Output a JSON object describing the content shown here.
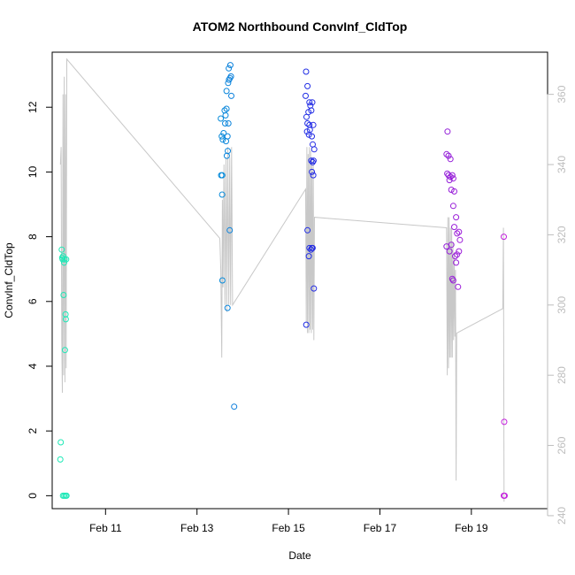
{
  "chart_data": {
    "type": "scatter",
    "title": "ATOM2 Northbound ConvInf_CldTop",
    "xlabel": "Date",
    "ylabel": "ConvInf_CldTop",
    "x_axis": {
      "unit": "date",
      "range": [
        "2016-02-09T20:00",
        "2016-02-20T16:00"
      ],
      "ticks": [
        {
          "label": "Feb 11",
          "value": "2016-02-11"
        },
        {
          "label": "Feb 13",
          "value": "2016-02-13"
        },
        {
          "label": "Feb 15",
          "value": "2016-02-15"
        },
        {
          "label": "Feb 17",
          "value": "2016-02-17"
        },
        {
          "label": "Feb 19",
          "value": "2016-02-19"
        }
      ]
    },
    "y_axis_left": {
      "range": [
        -0.4,
        13.7
      ],
      "ticks": [
        0,
        2,
        4,
        6,
        8,
        10,
        12
      ]
    },
    "y_axis_right": {
      "range": [
        242,
        372
      ],
      "ticks": [
        240,
        260,
        280,
        300,
        320,
        340,
        360
      ],
      "color": "#bdbdbd"
    },
    "grid": false,
    "legend": "none",
    "series": [
      {
        "role": "points",
        "axis": "left",
        "color_scale": [
          "#1de9b6",
          "#00bcd4",
          "#1a2ee6",
          "#7b1fd6",
          "#e020e0"
        ],
        "points": [
          {
            "x": "2016-02-10T01:00",
            "y": 7.6
          },
          {
            "x": "2016-02-10T01:15",
            "y": 7.35
          },
          {
            "x": "2016-02-10T01:30",
            "y": 7.3
          },
          {
            "x": "2016-02-10T01:45",
            "y": 7.4
          },
          {
            "x": "2016-02-10T02:00",
            "y": 6.2
          },
          {
            "x": "2016-02-10T02:15",
            "y": 7.2
          },
          {
            "x": "2016-02-10T02:30",
            "y": 7.3
          },
          {
            "x": "2016-02-10T02:40",
            "y": 4.5
          },
          {
            "x": "2016-02-10T03:00",
            "y": 5.6
          },
          {
            "x": "2016-02-10T03:10",
            "y": 5.45
          },
          {
            "x": "2016-02-10T03:20",
            "y": 7.3
          },
          {
            "x": "2016-02-10T00:30",
            "y": 1.65
          },
          {
            "x": "2016-02-10T00:15",
            "y": 1.12
          },
          {
            "x": "2016-02-10T01:40",
            "y": 0.0
          },
          {
            "x": "2016-02-10T02:20",
            "y": 0.0
          },
          {
            "x": "2016-02-10T03:00",
            "y": 0.0
          },
          {
            "x": "2016-02-10T03:30",
            "y": 0.0
          },
          {
            "x": "2016-02-13T12:30",
            "y": 11.65
          },
          {
            "x": "2016-02-13T13:00",
            "y": 11.1
          },
          {
            "x": "2016-02-13T13:30",
            "y": 11.0
          },
          {
            "x": "2016-02-13T14:00",
            "y": 11.2
          },
          {
            "x": "2016-02-13T13:15",
            "y": 9.9
          },
          {
            "x": "2016-02-13T12:40",
            "y": 9.9
          },
          {
            "x": "2016-02-13T13:10",
            "y": 9.3
          },
          {
            "x": "2016-02-13T14:30",
            "y": 11.9
          },
          {
            "x": "2016-02-13T15:00",
            "y": 11.75
          },
          {
            "x": "2016-02-13T15:30",
            "y": 11.95
          },
          {
            "x": "2016-02-13T14:45",
            "y": 11.5
          },
          {
            "x": "2016-02-13T15:15",
            "y": 10.95
          },
          {
            "x": "2016-02-13T16:00",
            "y": 11.1
          },
          {
            "x": "2016-02-13T16:30",
            "y": 11.5
          },
          {
            "x": "2016-02-13T15:40",
            "y": 10.5
          },
          {
            "x": "2016-02-13T16:10",
            "y": 10.65
          },
          {
            "x": "2016-02-13T15:30",
            "y": 12.5
          },
          {
            "x": "2016-02-13T16:20",
            "y": 12.75
          },
          {
            "x": "2016-02-13T16:50",
            "y": 12.85
          },
          {
            "x": "2016-02-13T17:20",
            "y": 12.9
          },
          {
            "x": "2016-02-13T17:50",
            "y": 12.95
          },
          {
            "x": "2016-02-13T16:40",
            "y": 13.2
          },
          {
            "x": "2016-02-13T17:30",
            "y": 13.3
          },
          {
            "x": "2016-02-13T18:00",
            "y": 12.35
          },
          {
            "x": "2016-02-13T17:10",
            "y": 8.2
          },
          {
            "x": "2016-02-13T13:20",
            "y": 6.65
          },
          {
            "x": "2016-02-13T16:00",
            "y": 5.8
          },
          {
            "x": "2016-02-13T19:30",
            "y": 2.75
          },
          {
            "x": "2016-02-15T09:15",
            "y": 13.1
          },
          {
            "x": "2016-02-15T10:00",
            "y": 12.65
          },
          {
            "x": "2016-02-15T09:00",
            "y": 12.35
          },
          {
            "x": "2016-02-15T11:00",
            "y": 12.15
          },
          {
            "x": "2016-02-15T12:30",
            "y": 12.15
          },
          {
            "x": "2016-02-15T11:30",
            "y": 12.05
          },
          {
            "x": "2016-02-15T12:00",
            "y": 11.9
          },
          {
            "x": "2016-02-15T10:30",
            "y": 11.85
          },
          {
            "x": "2016-02-15T09:30",
            "y": 11.7
          },
          {
            "x": "2016-02-15T10:00",
            "y": 11.5
          },
          {
            "x": "2016-02-15T11:00",
            "y": 11.45
          },
          {
            "x": "2016-02-15T13:00",
            "y": 11.45
          },
          {
            "x": "2016-02-15T09:45",
            "y": 11.25
          },
          {
            "x": "2016-02-15T10:45",
            "y": 11.15
          },
          {
            "x": "2016-02-15T11:15",
            "y": 11.3
          },
          {
            "x": "2016-02-15T12:15",
            "y": 11.1
          },
          {
            "x": "2016-02-15T12:45",
            "y": 10.85
          },
          {
            "x": "2016-02-15T13:30",
            "y": 10.7
          },
          {
            "x": "2016-02-15T12:00",
            "y": 10.35
          },
          {
            "x": "2016-02-15T12:40",
            "y": 10.3
          },
          {
            "x": "2016-02-15T13:10",
            "y": 10.35
          },
          {
            "x": "2016-02-15T12:20",
            "y": 10.0
          },
          {
            "x": "2016-02-15T13:00",
            "y": 9.9
          },
          {
            "x": "2016-02-15T10:00",
            "y": 8.2
          },
          {
            "x": "2016-02-15T11:00",
            "y": 7.65
          },
          {
            "x": "2016-02-15T10:40",
            "y": 7.4
          },
          {
            "x": "2016-02-15T11:50",
            "y": 7.6
          },
          {
            "x": "2016-02-15T12:20",
            "y": 7.65
          },
          {
            "x": "2016-02-15T12:40",
            "y": 7.65
          },
          {
            "x": "2016-02-15T13:20",
            "y": 6.4
          },
          {
            "x": "2016-02-15T09:20",
            "y": 5.28
          },
          {
            "x": "2016-02-18T11:30",
            "y": 11.25
          },
          {
            "x": "2016-02-18T11:00",
            "y": 10.55
          },
          {
            "x": "2016-02-18T12:00",
            "y": 10.5
          },
          {
            "x": "2016-02-18T13:00",
            "y": 10.4
          },
          {
            "x": "2016-02-18T11:20",
            "y": 9.95
          },
          {
            "x": "2016-02-18T12:00",
            "y": 9.9
          },
          {
            "x": "2016-02-18T13:00",
            "y": 9.85
          },
          {
            "x": "2016-02-18T14:00",
            "y": 9.9
          },
          {
            "x": "2016-02-18T12:30",
            "y": 9.75
          },
          {
            "x": "2016-02-18T14:30",
            "y": 9.8
          },
          {
            "x": "2016-02-18T13:30",
            "y": 9.45
          },
          {
            "x": "2016-02-18T15:00",
            "y": 9.4
          },
          {
            "x": "2016-02-18T14:30",
            "y": 8.95
          },
          {
            "x": "2016-02-18T16:00",
            "y": 8.6
          },
          {
            "x": "2016-02-18T15:00",
            "y": 8.3
          },
          {
            "x": "2016-02-18T16:30",
            "y": 8.1
          },
          {
            "x": "2016-02-18T17:30",
            "y": 8.15
          },
          {
            "x": "2016-02-18T18:00",
            "y": 7.9
          },
          {
            "x": "2016-02-18T13:30",
            "y": 7.75
          },
          {
            "x": "2016-02-18T11:00",
            "y": 7.7
          },
          {
            "x": "2016-02-18T12:30",
            "y": 7.55
          },
          {
            "x": "2016-02-18T15:30",
            "y": 7.4
          },
          {
            "x": "2016-02-18T16:30",
            "y": 7.45
          },
          {
            "x": "2016-02-18T17:30",
            "y": 7.55
          },
          {
            "x": "2016-02-18T16:00",
            "y": 7.2
          },
          {
            "x": "2016-02-18T14:00",
            "y": 6.7
          },
          {
            "x": "2016-02-18T14:30",
            "y": 6.65
          },
          {
            "x": "2016-02-18T17:00",
            "y": 6.45
          },
          {
            "x": "2016-02-19T17:00",
            "y": 8.0
          },
          {
            "x": "2016-02-19T17:15",
            "y": 2.28
          },
          {
            "x": "2016-02-19T17:00",
            "y": 0.0
          },
          {
            "x": "2016-02-19T17:30",
            "y": 0.0
          }
        ]
      },
      {
        "role": "line",
        "axis": "right",
        "color": "#c8c8c8",
        "points": [
          {
            "x": "2016-02-10T00:20",
            "y": 340
          },
          {
            "x": "2016-02-10T00:40",
            "y": 345
          },
          {
            "x": "2016-02-10T01:00",
            "y": 290
          },
          {
            "x": "2016-02-10T01:20",
            "y": 275
          },
          {
            "x": "2016-02-10T01:40",
            "y": 360
          },
          {
            "x": "2016-02-10T02:00",
            "y": 280
          },
          {
            "x": "2016-02-10T02:20",
            "y": 365
          },
          {
            "x": "2016-02-10T02:40",
            "y": 278
          },
          {
            "x": "2016-02-10T03:00",
            "y": 360
          },
          {
            "x": "2016-02-10T03:20",
            "y": 282
          },
          {
            "x": "2016-02-10T03:40",
            "y": 370
          },
          {
            "x": "2016-02-13T12:00",
            "y": 319
          },
          {
            "x": "2016-02-13T12:30",
            "y": 310
          },
          {
            "x": "2016-02-13T13:00",
            "y": 285
          },
          {
            "x": "2016-02-13T13:20",
            "y": 330
          },
          {
            "x": "2016-02-13T13:40",
            "y": 305
          },
          {
            "x": "2016-02-13T14:10",
            "y": 340
          },
          {
            "x": "2016-02-13T14:40",
            "y": 300
          },
          {
            "x": "2016-02-13T15:10",
            "y": 342
          },
          {
            "x": "2016-02-13T15:40",
            "y": 298
          },
          {
            "x": "2016-02-13T16:10",
            "y": 345
          },
          {
            "x": "2016-02-13T16:40",
            "y": 300
          },
          {
            "x": "2016-02-13T17:10",
            "y": 342
          },
          {
            "x": "2016-02-13T17:40",
            "y": 300
          },
          {
            "x": "2016-02-13T18:10",
            "y": 345
          },
          {
            "x": "2016-02-13T18:40",
            "y": 300
          },
          {
            "x": "2016-02-15T09:00",
            "y": 333
          },
          {
            "x": "2016-02-15T09:20",
            "y": 295
          },
          {
            "x": "2016-02-15T09:40",
            "y": 345
          },
          {
            "x": "2016-02-15T10:00",
            "y": 292
          },
          {
            "x": "2016-02-15T10:20",
            "y": 343
          },
          {
            "x": "2016-02-15T10:40",
            "y": 292
          },
          {
            "x": "2016-02-15T11:00",
            "y": 345
          },
          {
            "x": "2016-02-15T11:20",
            "y": 293
          },
          {
            "x": "2016-02-15T11:40",
            "y": 344
          },
          {
            "x": "2016-02-15T12:00",
            "y": 292
          },
          {
            "x": "2016-02-15T12:20",
            "y": 342
          },
          {
            "x": "2016-02-15T12:40",
            "y": 293
          },
          {
            "x": "2016-02-15T13:00",
            "y": 341
          },
          {
            "x": "2016-02-15T13:20",
            "y": 290
          },
          {
            "x": "2016-02-15T13:40",
            "y": 325
          },
          {
            "x": "2016-02-18T11:00",
            "y": 322
          },
          {
            "x": "2016-02-18T11:20",
            "y": 280
          },
          {
            "x": "2016-02-18T11:40",
            "y": 325
          },
          {
            "x": "2016-02-18T12:00",
            "y": 282
          },
          {
            "x": "2016-02-18T12:20",
            "y": 325
          },
          {
            "x": "2016-02-18T12:40",
            "y": 285
          },
          {
            "x": "2016-02-18T13:00",
            "y": 322
          },
          {
            "x": "2016-02-18T13:20",
            "y": 285
          },
          {
            "x": "2016-02-18T13:40",
            "y": 322
          },
          {
            "x": "2016-02-18T14:00",
            "y": 285
          },
          {
            "x": "2016-02-18T14:20",
            "y": 318
          },
          {
            "x": "2016-02-18T14:40",
            "y": 290
          },
          {
            "x": "2016-02-18T15:00",
            "y": 315
          },
          {
            "x": "2016-02-18T15:20",
            "y": 291
          },
          {
            "x": "2016-02-18T15:40",
            "y": 310
          },
          {
            "x": "2016-02-18T16:00",
            "y": 250
          },
          {
            "x": "2016-02-18T16:20",
            "y": 292
          },
          {
            "x": "2016-02-19T16:30",
            "y": 299
          },
          {
            "x": "2016-02-19T16:50",
            "y": 322
          },
          {
            "x": "2016-02-19T17:10",
            "y": 244
          }
        ]
      }
    ]
  }
}
